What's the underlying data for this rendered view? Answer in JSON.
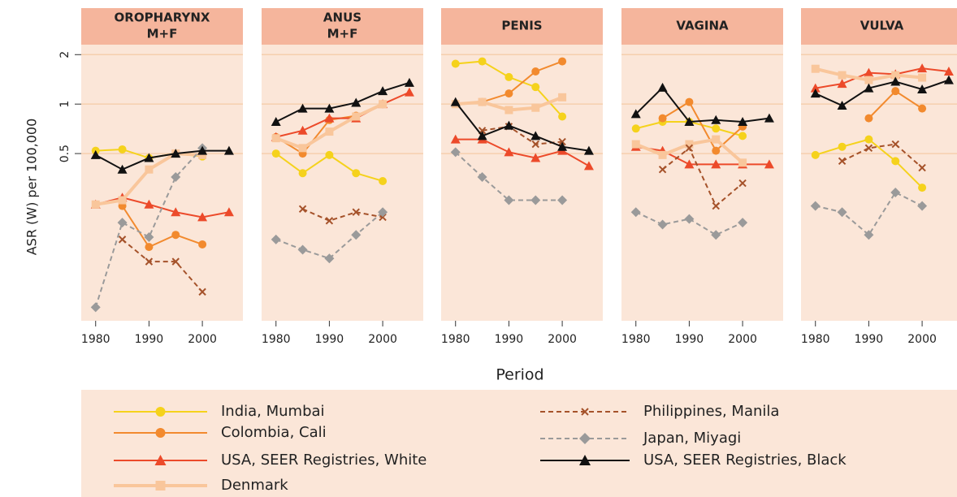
{
  "chart_data": {
    "type": "line",
    "ylabel": "ASR (W) per 100,000",
    "xlabel": "Period",
    "x": [
      1980,
      1985,
      1990,
      1995,
      2000,
      2005
    ],
    "xlim": [
      1977.3,
      2007.6
    ],
    "xticks": [
      1980,
      1990,
      2000
    ],
    "ylim": [
      0.048,
      2.3
    ],
    "yticks": [
      0.5,
      1,
      2
    ],
    "log_scale": true,
    "grid": true,
    "legend": [
      {
        "name": "India, Mumbai",
        "color": "#f5d21c",
        "marker": "circle",
        "dash": false
      },
      {
        "name": "Colombia, Cali",
        "color": "#f28a2e",
        "marker": "circle",
        "dash": false
      },
      {
        "name": "USA, SEER Registries, White",
        "color": "#ec4a2a",
        "marker": "triangle",
        "dash": false
      },
      {
        "name": "Denmark",
        "color": "#f9c69b",
        "marker": "square",
        "dash": false
      },
      {
        "name": "Philippines, Manila",
        "color": "#a5522a",
        "marker": "x",
        "dash": true
      },
      {
        "name": "Japan, Miyagi",
        "color": "#9a9a9a",
        "marker": "diamond",
        "dash": true
      },
      {
        "name": "USA, SEER Registries, Black",
        "color": "#111111",
        "marker": "triangle",
        "dash": false
      }
    ],
    "panels": [
      {
        "title": [
          "OROPHARYNX",
          "M+F"
        ],
        "series": [
          {
            "values": [
              0.52,
              0.53,
              0.47,
              0.5,
              0.48,
              null
            ]
          },
          {
            "values": [
              null,
              0.24,
              0.135,
              0.16,
              0.14,
              null
            ]
          },
          {
            "values": [
              0.245,
              0.27,
              0.245,
              0.22,
              0.205,
              0.22
            ]
          },
          {
            "values": [
              0.245,
              0.26,
              0.4,
              0.5,
              0.49,
              null
            ]
          },
          {
            "values": [
              null,
              0.15,
              0.11,
              0.11,
              0.072,
              null
            ]
          },
          {
            "values": [
              0.058,
              0.19,
              0.155,
              0.36,
              0.54,
              null
            ]
          },
          {
            "values": [
              0.49,
              0.4,
              0.47,
              0.5,
              0.52,
              0.52
            ]
          }
        ]
      },
      {
        "title": [
          "ANUS",
          "M+F"
        ],
        "series": [
          {
            "values": [
              0.5,
              0.38,
              0.49,
              0.38,
              0.34,
              null
            ]
          },
          {
            "values": [
              0.63,
              0.5,
              0.8,
              0.85,
              1.0,
              null
            ]
          },
          {
            "values": [
              0.63,
              0.69,
              0.82,
              0.82,
              1.0,
              1.18
            ]
          },
          {
            "values": [
              0.62,
              0.54,
              0.68,
              0.84,
              1.0,
              null
            ]
          },
          {
            "values": [
              null,
              0.23,
              0.195,
              0.22,
              0.205,
              null
            ]
          },
          {
            "values": [
              0.15,
              0.13,
              0.115,
              0.16,
              0.22,
              null
            ]
          },
          {
            "values": [
              0.78,
              0.94,
              0.94,
              1.02,
              1.2,
              1.35
            ]
          }
        ]
      },
      {
        "title": [
          "PENIS"
        ],
        "series": [
          {
            "values": [
              1.76,
              1.82,
              1.46,
              1.27,
              0.84,
              null
            ]
          },
          {
            "values": [
              null,
              1.03,
              1.16,
              1.58,
              1.82,
              null
            ]
          },
          {
            "values": [
              0.61,
              0.61,
              0.51,
              0.47,
              0.52,
              0.42
            ]
          },
          {
            "values": [
              1.0,
              1.03,
              0.92,
              0.95,
              1.1,
              null
            ]
          },
          {
            "values": [
              null,
              0.69,
              0.73,
              0.57,
              0.59,
              null
            ]
          },
          {
            "values": [
              0.51,
              0.36,
              0.26,
              0.26,
              0.26,
              null
            ]
          },
          {
            "values": [
              1.03,
              0.64,
              0.74,
              0.64,
              0.55,
              0.52
            ]
          }
        ]
      },
      {
        "title": [
          "VAGINA"
        ],
        "series": [
          {
            "values": [
              0.71,
              0.78,
              0.78,
              0.71,
              0.64,
              null
            ]
          },
          {
            "values": [
              null,
              0.82,
              1.03,
              0.52,
              0.73,
              null
            ]
          },
          {
            "values": [
              0.55,
              0.52,
              0.43,
              0.43,
              0.43,
              0.43
            ]
          },
          {
            "values": [
              0.57,
              0.49,
              0.57,
              0.61,
              0.44,
              null
            ]
          },
          {
            "values": [
              null,
              0.4,
              0.54,
              0.24,
              0.33,
              null
            ]
          },
          {
            "values": [
              0.22,
              0.185,
              0.2,
              0.16,
              0.19,
              null
            ]
          },
          {
            "values": [
              0.87,
              1.26,
              0.78,
              0.8,
              0.78,
              0.82
            ]
          }
        ]
      },
      {
        "title": [
          "VULVA"
        ],
        "series": [
          {
            "values": [
              0.49,
              0.55,
              0.61,
              0.45,
              0.31,
              null
            ]
          },
          {
            "values": [
              null,
              null,
              0.82,
              1.2,
              0.94,
              null
            ]
          },
          {
            "values": [
              1.25,
              1.33,
              1.55,
              1.52,
              1.65,
              1.58
            ]
          },
          {
            "values": [
              1.64,
              1.5,
              1.4,
              1.5,
              1.45,
              null
            ]
          },
          {
            "values": [
              null,
              0.45,
              0.54,
              0.57,
              0.41,
              null
            ]
          },
          {
            "values": [
              0.24,
              0.22,
              0.16,
              0.29,
              0.24,
              null
            ]
          },
          {
            "values": [
              1.16,
              0.98,
              1.25,
              1.37,
              1.23,
              1.4
            ]
          }
        ]
      }
    ]
  }
}
